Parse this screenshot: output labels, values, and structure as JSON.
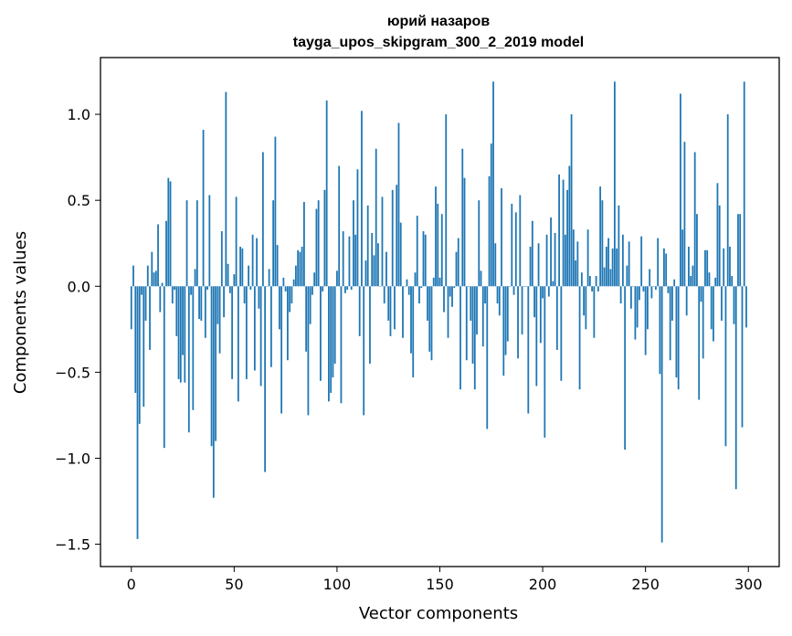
{
  "chart_data": {
    "type": "bar",
    "title": "юрий назаров",
    "subtitle": "tayga_upos_skipgram_300_2_2019 model",
    "xlabel": "Vector components",
    "ylabel": "Components values",
    "xlim": [
      -15,
      315
    ],
    "ylim": [
      -1.63,
      1.33
    ],
    "xticks": [
      0,
      50,
      100,
      150,
      200,
      250,
      300
    ],
    "yticks": [
      -1.5,
      -1.0,
      -0.5,
      0.0,
      0.5,
      1.0
    ],
    "ytick_labels": [
      "−1.5",
      "−1.0",
      "−0.5",
      "0.0",
      "0.5",
      "1.0"
    ],
    "grid": false,
    "legend": "none",
    "bar_color": "#1f77b4",
    "values": [
      -0.25,
      0.12,
      -0.62,
      -1.47,
      -0.8,
      -0.05,
      -0.7,
      -0.2,
      0.12,
      -0.37,
      0.2,
      0.08,
      0.09,
      0.36,
      -0.15,
      0.02,
      -0.94,
      0.38,
      0.63,
      0.61,
      -0.1,
      -0.02,
      -0.29,
      -0.54,
      -0.56,
      -0.4,
      -0.56,
      0.5,
      -0.85,
      -0.05,
      -0.72,
      0.1,
      0.5,
      -0.19,
      -0.2,
      0.91,
      -0.3,
      -0.02,
      0.53,
      -0.93,
      -1.23,
      -0.9,
      -0.22,
      -0.39,
      0.32,
      -0.18,
      1.13,
      0.13,
      -0.04,
      -0.54,
      0.07,
      0.52,
      -0.67,
      0.23,
      0.22,
      -0.1,
      -0.54,
      0.12,
      -0.02,
      0.3,
      -0.49,
      0.28,
      -0.13,
      -0.58,
      0.78,
      -1.08,
      0.0,
      0.1,
      -0.47,
      0.5,
      0.87,
      0.24,
      -0.25,
      -0.74,
      0.05,
      -0.03,
      -0.43,
      -0.15,
      -0.1,
      0.04,
      0.12,
      0.21,
      0.2,
      0.23,
      0.49,
      -0.38,
      -0.75,
      -0.22,
      -0.05,
      0.08,
      0.45,
      0.5,
      -0.55,
      -0.03,
      0.56,
      1.08,
      -0.67,
      -0.62,
      -0.53,
      -0.45,
      0.09,
      0.7,
      -0.68,
      0.32,
      -0.04,
      -0.02,
      0.29,
      -0.02,
      0.5,
      0.3,
      0.68,
      -0.29,
      1.02,
      -0.75,
      0.15,
      0.47,
      -0.45,
      0.31,
      0.18,
      0.8,
      0.25,
      0.0,
      0.52,
      -0.1,
      0.2,
      -0.2,
      -0.29,
      0.56,
      -0.25,
      0.59,
      0.95,
      0.37,
      -0.3,
      0.0,
      0.04,
      -0.05,
      -0.39,
      -0.53,
      0.08,
      0.41,
      -0.1,
      -0.01,
      0.32,
      0.3,
      -0.2,
      -0.38,
      -0.43,
      0.05,
      0.58,
      0.48,
      0.05,
      0.42,
      -0.15,
      1.0,
      -0.3,
      -0.06,
      -0.12,
      -0.01,
      0.2,
      0.28,
      -0.6,
      0.8,
      0.63,
      -0.43,
      0.0,
      -0.2,
      -0.45,
      -0.6,
      -0.28,
      0.5,
      0.09,
      -0.35,
      -0.1,
      -0.83,
      0.64,
      0.83,
      1.19,
      0.25,
      -0.1,
      -0.17,
      0.57,
      -0.52,
      -0.4,
      -0.32,
      0.0,
      0.48,
      -0.05,
      0.43,
      -0.42,
      0.53,
      -0.28,
      0.0,
      0.0,
      -0.74,
      0.23,
      0.38,
      -0.18,
      -0.58,
      0.25,
      -0.33,
      -0.07,
      -0.88,
      0.3,
      -0.06,
      0.4,
      0.03,
      0.31,
      -0.37,
      0.65,
      -0.55,
      0.62,
      0.3,
      0.56,
      0.7,
      1.0,
      0.33,
      0.15,
      0.26,
      -0.6,
      0.08,
      -0.17,
      -0.25,
      0.33,
      0.06,
      -0.03,
      -0.3,
      0.06,
      -0.03,
      0.58,
      0.5,
      0.11,
      0.23,
      0.28,
      0.1,
      0.22,
      1.19,
      0.22,
      0.47,
      -0.1,
      0.3,
      -0.95,
      0.12,
      0.26,
      -0.13,
      0.0,
      -0.31,
      -0.24,
      -0.08,
      0.29,
      -0.03,
      -0.4,
      -0.25,
      0.1,
      -0.07,
      0.0,
      -0.02,
      0.28,
      -0.51,
      -1.49,
      0.22,
      0.19,
      -0.04,
      -0.43,
      -0.2,
      0.04,
      -0.53,
      -0.6,
      1.12,
      0.33,
      0.84,
      -0.17,
      0.23,
      0.06,
      0.12,
      0.78,
      0.42,
      -0.66,
      -0.09,
      -0.42,
      0.21,
      0.21,
      0.08,
      -0.25,
      -0.32,
      0.05,
      0.6,
      0.47,
      -0.2,
      0.22,
      -0.93,
      1.0,
      0.23,
      0.06,
      -0.22,
      -1.18,
      0.42,
      0.42,
      -0.82,
      1.19,
      -0.24
    ]
  }
}
